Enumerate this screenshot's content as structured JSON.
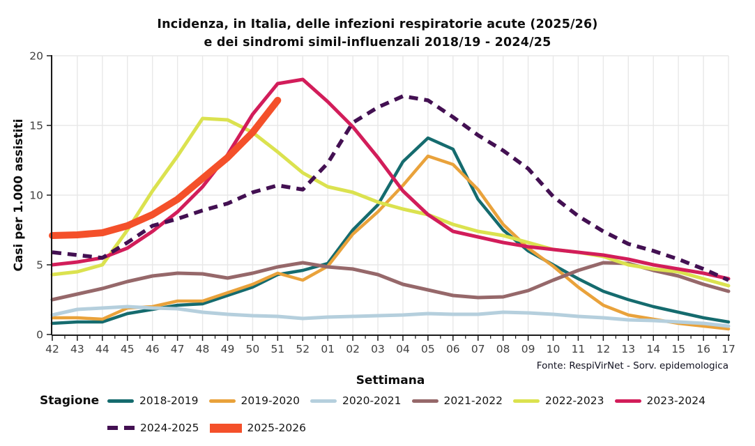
{
  "title": {
    "line1": "Incidenza, in Italia, delle infezioni respiratorie acute (2025/26)",
    "line2": "e dei sindromi simil-influenzali 2018/19 - 2024/25"
  },
  "footer": {
    "source": "Fonte: RespiVirNet - Sorv. epidemologica"
  },
  "legend": {
    "title": "Stagione",
    "rows": [
      [
        "2018-2019",
        "2019-2020",
        "2020-2021",
        "2021-2022",
        "2022-2023",
        "2023-2024"
      ],
      [
        "2024-2025",
        "2025-2026"
      ]
    ]
  },
  "chart_data": {
    "type": "line",
    "title": "Incidenza, in Italia, delle infezioni respiratorie acute (2025/26) e dei sindromi simil-influenzali 2018/19 - 2024/25",
    "xlabel": "Settimana",
    "ylabel": "Casi per 1.000 assistiti",
    "x": [
      "42",
      "43",
      "44",
      "45",
      "46",
      "47",
      "48",
      "49",
      "50",
      "51",
      "52",
      "01",
      "02",
      "03",
      "04",
      "05",
      "06",
      "07",
      "08",
      "09",
      "10",
      "11",
      "12",
      "13",
      "14",
      "15",
      "16",
      "17"
    ],
    "ylim": [
      0,
      20
    ],
    "yticks": [
      0,
      5,
      10,
      15,
      20
    ],
    "grid": true,
    "legend_position": "bottom",
    "axis_color": "#1a1a1a",
    "grid_color": "#e8e8e8",
    "tick_label_color": "#3f3f3f",
    "series": [
      {
        "name": "2018-2019",
        "color": "#156b6e",
        "style": "solid",
        "width": 4.5,
        "values": [
          0.8,
          0.9,
          0.9,
          1.5,
          1.8,
          2.1,
          2.2,
          2.8,
          3.4,
          4.3,
          4.6,
          5.1,
          7.5,
          9.3,
          12.4,
          14.1,
          13.3,
          9.7,
          7.5,
          6.0,
          5.0,
          4.0,
          3.1,
          2.5,
          2.0,
          1.6,
          1.2,
          0.9
        ]
      },
      {
        "name": "2019-2020",
        "color": "#e9a23b",
        "style": "solid",
        "width": 4.5,
        "values": [
          1.2,
          1.2,
          1.1,
          1.9,
          2.0,
          2.4,
          2.4,
          3.0,
          3.6,
          4.4,
          3.9,
          4.9,
          7.2,
          8.8,
          10.7,
          12.8,
          12.2,
          10.4,
          7.9,
          6.2,
          4.9,
          3.4,
          2.1,
          1.4,
          1.1,
          0.8,
          0.6,
          0.4
        ]
      },
      {
        "name": "2020-2021",
        "color": "#b5cfdd",
        "style": "solid",
        "width": 5,
        "values": [
          1.4,
          1.8,
          1.9,
          2.0,
          1.9,
          1.85,
          1.6,
          1.45,
          1.35,
          1.3,
          1.15,
          1.25,
          1.3,
          1.35,
          1.4,
          1.5,
          1.45,
          1.45,
          1.6,
          1.55,
          1.45,
          1.3,
          1.2,
          1.05,
          1.0,
          0.9,
          0.8,
          0.6
        ]
      },
      {
        "name": "2021-2022",
        "color": "#96686a",
        "style": "solid",
        "width": 5,
        "values": [
          2.5,
          2.9,
          3.3,
          3.8,
          4.2,
          4.4,
          4.35,
          4.05,
          4.4,
          4.85,
          5.15,
          4.85,
          4.7,
          4.3,
          3.6,
          3.2,
          2.8,
          2.65,
          2.7,
          3.15,
          3.9,
          4.6,
          5.15,
          5.1,
          4.6,
          4.2,
          3.6,
          3.1
        ]
      },
      {
        "name": "2022-2023",
        "color": "#dbe24f",
        "style": "solid",
        "width": 5,
        "values": [
          4.3,
          4.5,
          5.0,
          7.5,
          10.3,
          12.8,
          15.5,
          15.4,
          14.5,
          13.1,
          11.6,
          10.6,
          10.2,
          9.5,
          9.0,
          8.6,
          7.9,
          7.4,
          7.1,
          6.6,
          6.1,
          5.9,
          5.6,
          5.0,
          4.7,
          4.5,
          4.0,
          3.5
        ]
      },
      {
        "name": "2023-2024",
        "color": "#d21d5a",
        "style": "solid",
        "width": 5,
        "values": [
          5.0,
          5.2,
          5.5,
          6.2,
          7.4,
          8.8,
          10.6,
          12.9,
          15.8,
          18.0,
          18.3,
          16.7,
          14.9,
          12.7,
          10.3,
          8.6,
          7.4,
          7.0,
          6.6,
          6.3,
          6.1,
          5.9,
          5.7,
          5.4,
          5.0,
          4.7,
          4.4,
          4.0
        ]
      },
      {
        "name": "2024-2025",
        "color": "#431052",
        "style": "dashed",
        "width": 5.5,
        "values": [
          5.9,
          5.7,
          5.5,
          6.6,
          7.8,
          8.3,
          8.9,
          9.4,
          10.2,
          10.7,
          10.4,
          12.3,
          15.2,
          16.3,
          17.1,
          16.8,
          15.6,
          14.3,
          13.2,
          11.9,
          9.9,
          8.5,
          7.4,
          6.5,
          6.0,
          5.4,
          4.7,
          3.9
        ]
      },
      {
        "name": "2025-2026",
        "color": "#f4502a",
        "style": "solid",
        "width": 10,
        "values": [
          7.1,
          7.15,
          7.3,
          7.8,
          8.6,
          9.7,
          11.2,
          12.7,
          14.5,
          16.8
        ]
      }
    ]
  }
}
